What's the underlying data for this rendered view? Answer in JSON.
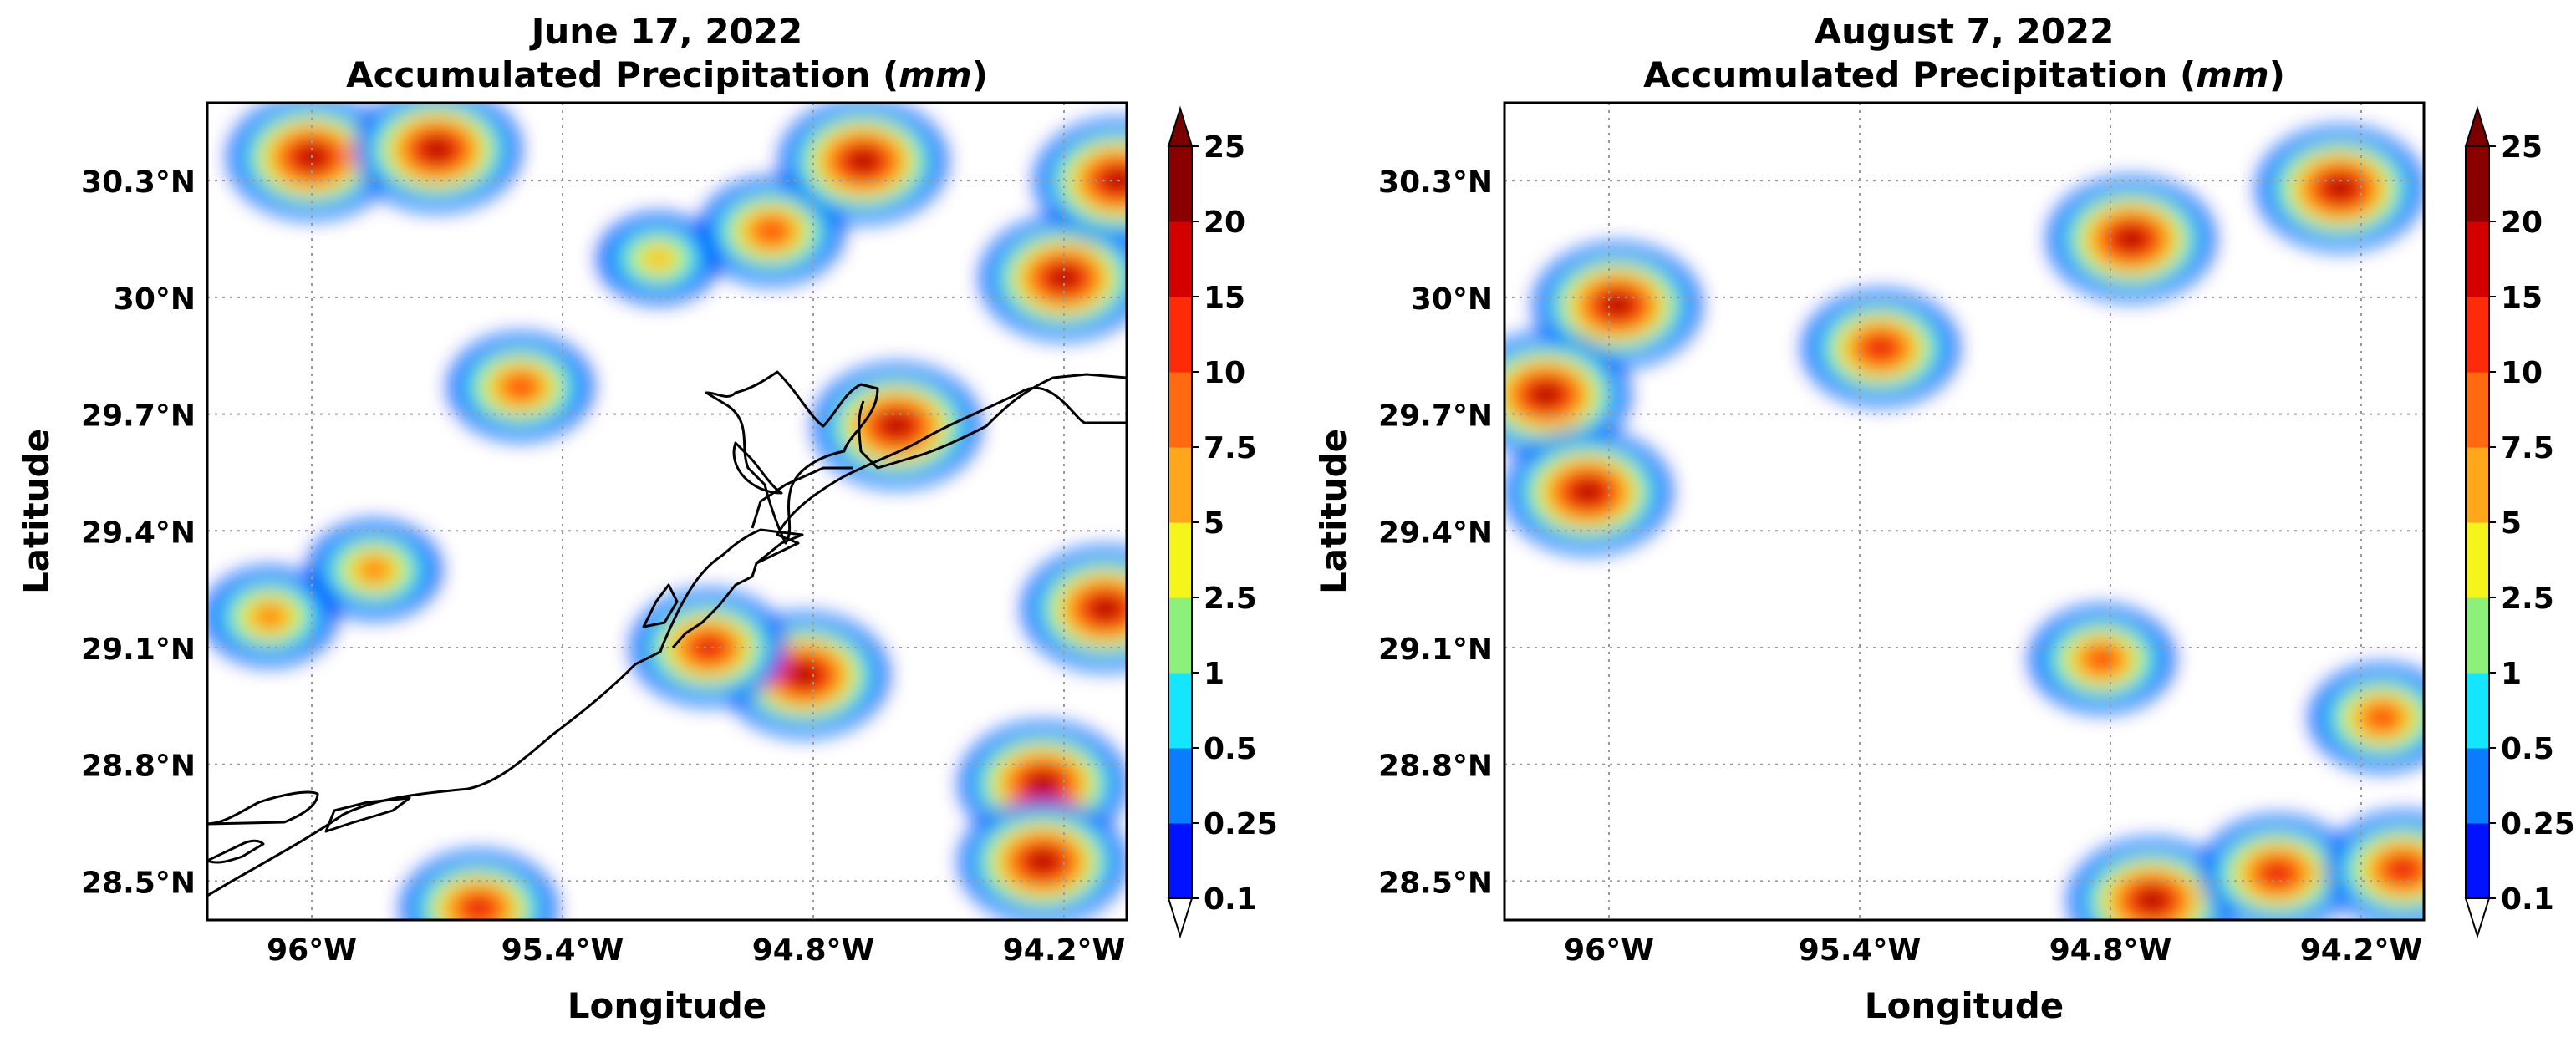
{
  "panels": [
    {
      "date": "June 17, 2022",
      "title": "Accumulated Precipitation (",
      "unit": "mm",
      "title_close": ")",
      "xlabel": "Longitude",
      "ylabel": "Latitude",
      "lat_ticks": [
        "28.5°N",
        "28.8°N",
        "29.1°N",
        "29.4°N",
        "29.7°N",
        "30°N",
        "30.3°N"
      ],
      "lon_ticks": [
        "96°W",
        "95.4°W",
        "94.8°W",
        "94.2°W"
      ]
    },
    {
      "date": "August 7, 2022",
      "title": "Accumulated Precipitation (",
      "unit": "mm",
      "title_close": ")",
      "xlabel": "Longitude",
      "ylabel": "Latitude",
      "lat_ticks": [
        "28.5°N",
        "28.8°N",
        "29.1°N",
        "29.4°N",
        "29.7°N",
        "30°N",
        "30.3°N"
      ],
      "lon_ticks": [
        "96°W",
        "95.4°W",
        "94.8°W",
        "94.2°W"
      ]
    }
  ],
  "colorbar": {
    "levels": [
      "0.1",
      "0.25",
      "0.5",
      "1",
      "2.5",
      "5",
      "7.5",
      "10",
      "15",
      "20",
      "25"
    ],
    "colors": [
      "#0012ff",
      "#0a7cff",
      "#14e6ff",
      "#8cf07a",
      "#f5f51c",
      "#ffa61a",
      "#ff6a10",
      "#ff2a08",
      "#d40000",
      "#8a0000"
    ],
    "under_color": "#ffffff",
    "over_color": "#7a0000"
  },
  "chart_data": [
    {
      "type": "heatmap",
      "title": "June 17, 2022 Accumulated Precipitation (mm)",
      "xlabel": "Longitude",
      "ylabel": "Latitude",
      "xlim": [
        -96.25,
        -94.05
      ],
      "ylim": [
        28.4,
        30.5
      ],
      "contour_levels_mm": [
        0.1,
        0.25,
        0.5,
        1,
        2.5,
        5,
        7.5,
        10,
        15,
        20,
        25
      ],
      "grid": true,
      "precip_cells": [
        {
          "lon": -96.0,
          "lat": 30.36,
          "max_mm": 25
        },
        {
          "lon": -95.7,
          "lat": 30.38,
          "max_mm": 22
        },
        {
          "lon": -95.17,
          "lat": 30.1,
          "max_mm": 6
        },
        {
          "lon": -94.9,
          "lat": 30.17,
          "max_mm": 12
        },
        {
          "lon": -94.68,
          "lat": 30.35,
          "max_mm": 20
        },
        {
          "lon": -94.2,
          "lat": 30.05,
          "max_mm": 22
        },
        {
          "lon": -95.5,
          "lat": 29.77,
          "max_mm": 12
        },
        {
          "lon": -94.6,
          "lat": 29.67,
          "max_mm": 20
        },
        {
          "lon": -94.07,
          "lat": 30.3,
          "max_mm": 20
        },
        {
          "lon": -94.1,
          "lat": 29.2,
          "max_mm": 25
        },
        {
          "lon": -94.82,
          "lat": 29.03,
          "max_mm": 25
        },
        {
          "lon": -95.05,
          "lat": 29.1,
          "max_mm": 15
        },
        {
          "lon": -94.25,
          "lat": 28.75,
          "max_mm": 25
        },
        {
          "lon": -94.25,
          "lat": 28.55,
          "max_mm": 20
        },
        {
          "lon": -96.1,
          "lat": 29.18,
          "max_mm": 8
        },
        {
          "lon": -95.85,
          "lat": 29.3,
          "max_mm": 8
        },
        {
          "lon": -95.6,
          "lat": 28.43,
          "max_mm": 15
        }
      ]
    },
    {
      "type": "heatmap",
      "title": "August 7, 2022 Accumulated Precipitation (mm)",
      "xlabel": "Longitude",
      "ylabel": "Latitude",
      "xlim": [
        -96.25,
        -94.05
      ],
      "ylim": [
        28.4,
        30.5
      ],
      "contour_levels_mm": [
        0.1,
        0.25,
        0.5,
        1,
        2.5,
        5,
        7.5,
        10,
        15,
        20,
        25
      ],
      "grid": true,
      "precip_cells": [
        {
          "lon": -95.98,
          "lat": 29.98,
          "max_mm": 25
        },
        {
          "lon": -96.15,
          "lat": 29.75,
          "max_mm": 20
        },
        {
          "lon": -96.05,
          "lat": 29.5,
          "max_mm": 25
        },
        {
          "lon": -95.35,
          "lat": 29.87,
          "max_mm": 15
        },
        {
          "lon": -94.75,
          "lat": 30.15,
          "max_mm": 25
        },
        {
          "lon": -94.25,
          "lat": 30.28,
          "max_mm": 20
        },
        {
          "lon": -94.82,
          "lat": 29.07,
          "max_mm": 12
        },
        {
          "lon": -94.7,
          "lat": 28.45,
          "max_mm": 20
        },
        {
          "lon": -94.4,
          "lat": 28.52,
          "max_mm": 15
        },
        {
          "lon": -94.15,
          "lat": 28.92,
          "max_mm": 12
        },
        {
          "lon": -94.1,
          "lat": 28.53,
          "max_mm": 15
        }
      ]
    }
  ]
}
